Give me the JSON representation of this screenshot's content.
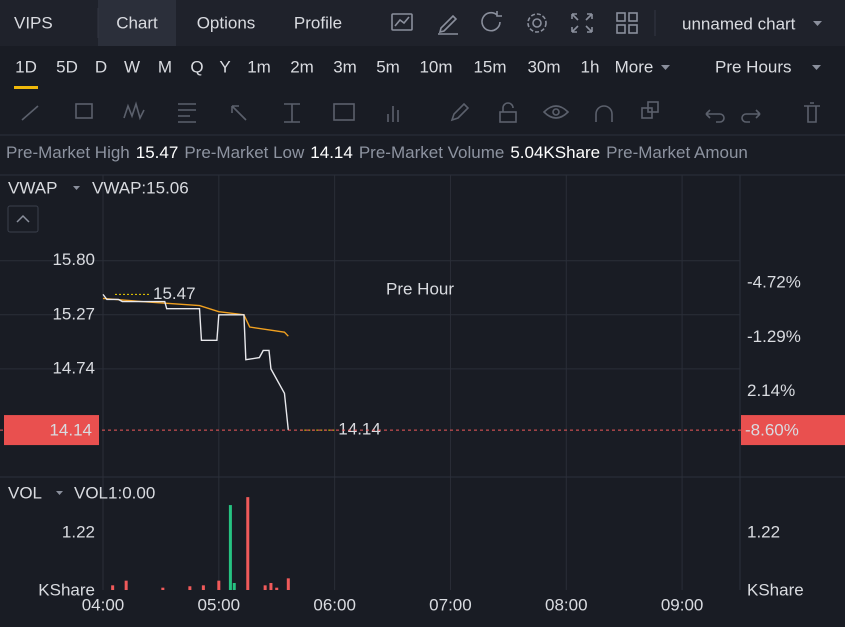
{
  "header": {
    "symbol": "VIPS",
    "tabs": [
      "Chart",
      "Options",
      "Profile"
    ],
    "active_tab": 0,
    "chart_name": "unnamed chart"
  },
  "timeframes": {
    "items": [
      "1D",
      "5D",
      "D",
      "W",
      "M",
      "Q",
      "Y",
      "1m",
      "2m",
      "3m",
      "5m",
      "10m",
      "15m",
      "30m",
      "1h",
      "More"
    ],
    "active": 0,
    "session": "Pre Hours"
  },
  "stats": [
    {
      "label": "Pre-Market High",
      "value": "15.47"
    },
    {
      "label": "Pre-Market Low",
      "value": "14.14"
    },
    {
      "label": "Pre-Market Volume",
      "value": "5.04KShare"
    },
    {
      "label": "Pre-Market Amoun"
    }
  ],
  "chart_data": [
    {
      "type": "line",
      "watermark": "Pre Hour",
      "color": "#e8e8ec",
      "x": [
        240,
        242,
        248,
        250,
        272,
        273,
        290,
        291,
        299,
        300,
        313,
        314,
        321,
        323,
        326,
        327,
        334,
        336
      ],
      "values": [
        15.47,
        15.42,
        15.42,
        15.4,
        15.4,
        15.33,
        15.33,
        15.02,
        15.02,
        15.27,
        15.27,
        14.83,
        14.85,
        14.92,
        14.92,
        14.74,
        14.5,
        14.14
      ],
      "series": [
        {
          "name": "VWAP",
          "value_label": "VWAP:15.06",
          "color": "#f0a020",
          "x": [
            240,
            260,
            290,
            300,
            313,
            316,
            334,
            336
          ],
          "values": [
            15.43,
            15.4,
            15.36,
            15.3,
            15.27,
            15.15,
            15.1,
            15.06
          ]
        }
      ],
      "annotations": [
        {
          "x": 240,
          "value": 15.47
        },
        {
          "x": 336,
          "value": 14.14
        }
      ],
      "last_price": 14.14,
      "last_change": {
        "value": -8.6,
        "label": "-8.60%"
      },
      "xlim": [
        240,
        570
      ],
      "ylim": [
        13.68,
        16.64
      ],
      "yticks": [
        {
          "value": 15.8,
          "label": "15.80"
        },
        15.27,
        14.74
      ],
      "y2lim": [
        7.56,
        -11.57
      ],
      "y2ticks": [
        {
          "value": 2.14,
          "label": "2.14%"
        },
        {
          "value": -1.29,
          "label": "-1.29%"
        },
        {
          "value": -4.72,
          "label": "-4.72%"
        }
      ],
      "up_color": "#3fbf78",
      "down_color": "#f05a5a",
      "grid": true
    },
    {
      "type": "bar",
      "indicator": "VOL",
      "indicator_label": "VOL1:0.00",
      "y_unit": "KShare",
      "x": [
        245,
        252,
        271,
        285,
        292,
        300,
        306,
        308,
        315,
        324,
        327,
        330,
        336
      ],
      "values": [
        0.1,
        0.2,
        0.05,
        0.08,
        0.1,
        0.2,
        1.82,
        0.15,
        1.99,
        0.1,
        0.15,
        0.05,
        0.25
      ],
      "colors": [
        "#f05a5a",
        "#f05a5a",
        "#f05a5a",
        "#f05a5a",
        "#f05a5a",
        "#f05a5a",
        "#26c281",
        "#26c281",
        "#f05a5a",
        "#f05a5a",
        "#f05a5a",
        "#f05a5a",
        "#f05a5a"
      ],
      "xlim": [
        240,
        570
      ],
      "xticks": [
        {
          "value": 240,
          "label": "04:00"
        },
        {
          "value": 300,
          "label": "05:00"
        },
        {
          "value": 360,
          "label": "06:00"
        },
        {
          "value": 420,
          "label": "07:00"
        },
        {
          "value": 480,
          "label": "08:00"
        },
        {
          "value": 540,
          "label": "09:00"
        }
      ],
      "ylim": [
        0,
        2.4
      ],
      "yticks": [
        1.22
      ],
      "y2ticks": [
        1.22
      ],
      "grid": true
    }
  ]
}
